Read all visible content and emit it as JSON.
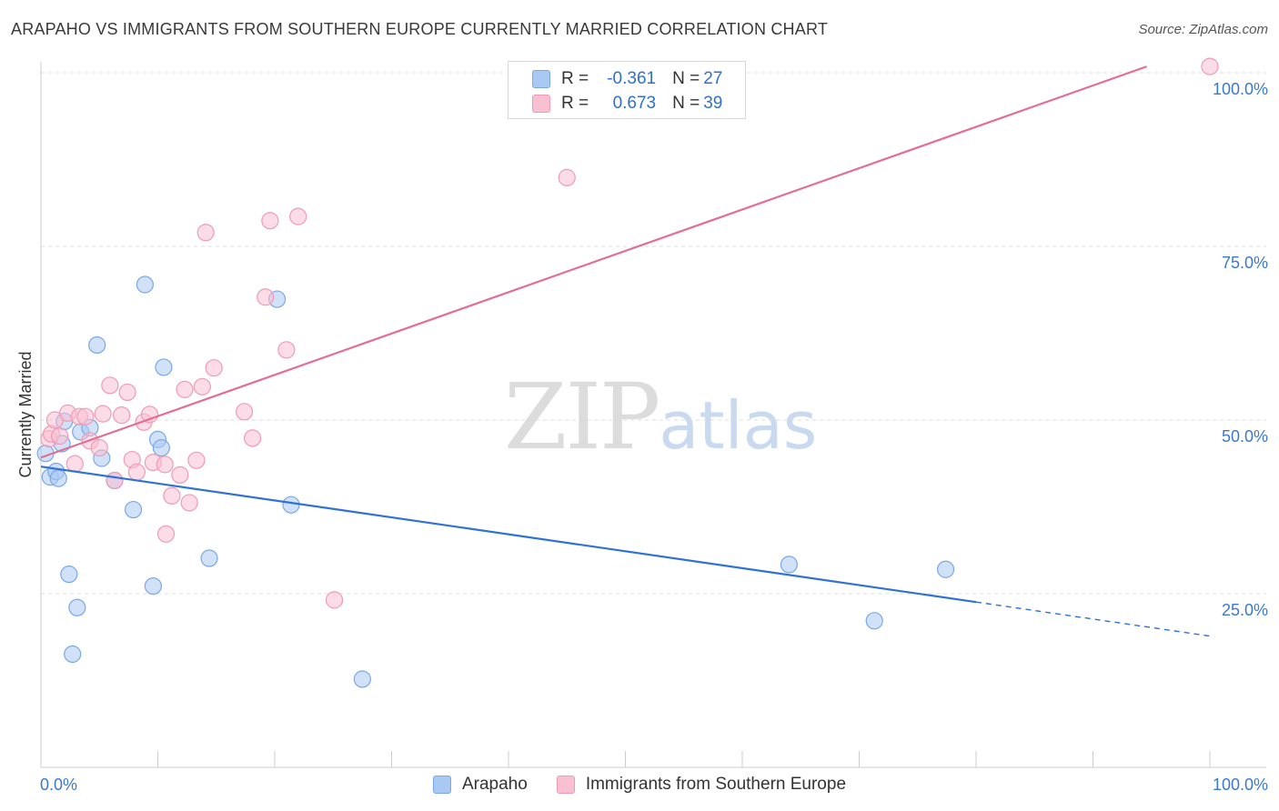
{
  "title": "ARAPAHO VS IMMIGRANTS FROM SOUTHERN EUROPE CURRENTLY MARRIED CORRELATION CHART",
  "source": "Source: ZipAtlas.com",
  "watermark": {
    "zip": "ZIP",
    "atlas": "atlas"
  },
  "legend": {
    "rows": [
      {
        "r_label": "R =",
        "r_value": "-0.361",
        "n_label": "N =",
        "n_value": "27",
        "color": "#a9c8f2",
        "border": "#7aa8e6"
      },
      {
        "r_label": "R =",
        "r_value": "0.673",
        "n_label": "N =",
        "n_value": "39",
        "color": "#f9c0d1",
        "border": "#ef9bb4"
      }
    ]
  },
  "bottom_legend": [
    {
      "label": "Arapaho",
      "color": "#a9c8f2",
      "border": "#7aa8e6"
    },
    {
      "label": "Immigrants from Southern Europe",
      "color": "#f9c0d1",
      "border": "#ef9bb4"
    }
  ],
  "chart_data": {
    "type": "scatter",
    "title": "ARAPAHO VS IMMIGRANTS FROM SOUTHERN EUROPE CURRENTLY MARRIED CORRELATION CHART",
    "xlabel": "",
    "ylabel": "Currently Married",
    "xlim": [
      0,
      100
    ],
    "ylim": [
      0,
      100
    ],
    "x_tick_labels": [
      "0.0%",
      "100.0%"
    ],
    "y_ticks": [
      25,
      50,
      75,
      100
    ],
    "y_tick_labels": [
      "25.0%",
      "50.0%",
      "75.0%",
      "100.0%"
    ],
    "grid": true,
    "legend_position": "top-center",
    "series": [
      {
        "name": "Arapaho",
        "color": "#7aa8e6",
        "fill": "#a9c8f2",
        "line_color": "#2f72d6",
        "points": [
          [
            0.4,
            45.2
          ],
          [
            0.8,
            41.8
          ],
          [
            1.3,
            42.6
          ],
          [
            1.5,
            41.6
          ],
          [
            1.8,
            46.6
          ],
          [
            2.0,
            49.8
          ],
          [
            2.4,
            27.8
          ],
          [
            3.1,
            23.0
          ],
          [
            2.7,
            16.3
          ],
          [
            3.4,
            48.3
          ],
          [
            4.2,
            48.9
          ],
          [
            4.8,
            60.8
          ],
          [
            5.2,
            44.5
          ],
          [
            6.3,
            41.3
          ],
          [
            7.9,
            37.1
          ],
          [
            8.9,
            69.5
          ],
          [
            9.6,
            26.1
          ],
          [
            10.0,
            47.2
          ],
          [
            10.3,
            46.0
          ],
          [
            10.5,
            57.6
          ],
          [
            14.4,
            30.1
          ],
          [
            20.2,
            67.4
          ],
          [
            21.4,
            37.8
          ],
          [
            27.5,
            12.7
          ],
          [
            64.0,
            29.2
          ],
          [
            71.3,
            21.1
          ],
          [
            77.4,
            28.5
          ]
        ],
        "trend": {
          "x": [
            0,
            80
          ],
          "y": [
            43.3,
            23.8
          ]
        },
        "trend_extension": {
          "x": [
            80,
            100
          ],
          "y": [
            23.8,
            18.9
          ]
        }
      },
      {
        "name": "Immigrants from Southern Europe",
        "color": "#ef9bb4",
        "fill": "#f9c0d1",
        "line_color": "#e36d93",
        "points": [
          [
            0.7,
            47.3
          ],
          [
            0.9,
            48.0
          ],
          [
            1.2,
            50.0
          ],
          [
            1.6,
            47.7
          ],
          [
            2.3,
            51.0
          ],
          [
            2.9,
            43.7
          ],
          [
            3.3,
            50.5
          ],
          [
            3.8,
            50.5
          ],
          [
            4.2,
            47.0
          ],
          [
            5.0,
            46.0
          ],
          [
            5.3,
            50.9
          ],
          [
            5.9,
            55.0
          ],
          [
            6.3,
            41.3
          ],
          [
            6.9,
            50.7
          ],
          [
            7.4,
            54.0
          ],
          [
            7.8,
            44.3
          ],
          [
            8.2,
            42.5
          ],
          [
            8.8,
            49.7
          ],
          [
            9.3,
            50.8
          ],
          [
            9.6,
            43.9
          ],
          [
            10.6,
            43.6
          ],
          [
            10.7,
            33.6
          ],
          [
            11.2,
            39.1
          ],
          [
            11.9,
            42.1
          ],
          [
            12.3,
            54.4
          ],
          [
            12.7,
            38.1
          ],
          [
            13.3,
            44.2
          ],
          [
            13.8,
            54.8
          ],
          [
            14.1,
            77.0
          ],
          [
            14.8,
            57.5
          ],
          [
            17.4,
            51.2
          ],
          [
            18.1,
            47.4
          ],
          [
            19.2,
            67.7
          ],
          [
            19.6,
            78.7
          ],
          [
            21.0,
            60.1
          ],
          [
            22.0,
            79.3
          ],
          [
            25.1,
            24.1
          ],
          [
            45.0,
            84.9
          ],
          [
            100.0,
            100.9
          ]
        ],
        "trend": {
          "x": [
            0,
            94.6
          ],
          "y": [
            44.6,
            100.9
          ]
        }
      }
    ]
  }
}
